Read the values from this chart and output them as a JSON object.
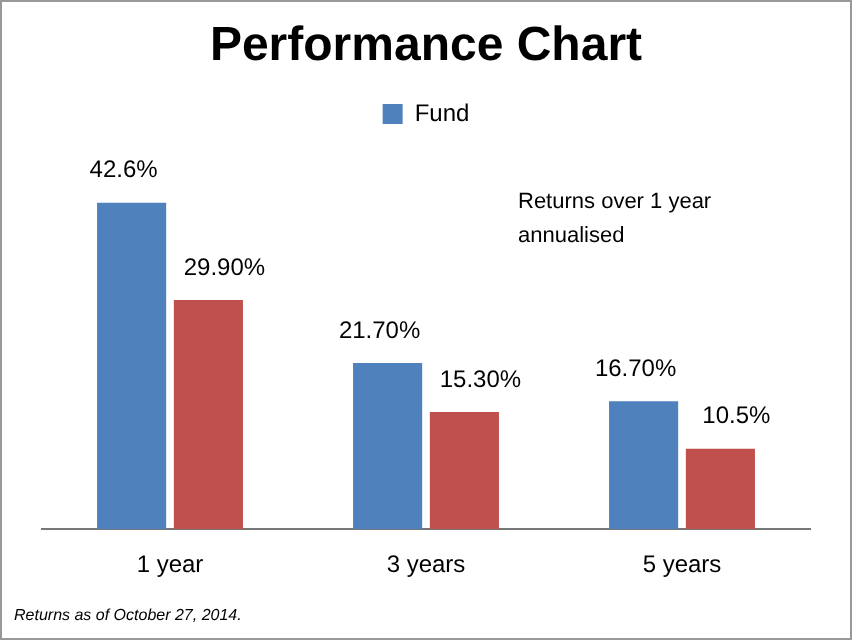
{
  "chart_data": {
    "type": "bar",
    "title": "Performance Chart",
    "categories": [
      "1 year",
      "3 years",
      "5 years"
    ],
    "series": [
      {
        "name": "Fund",
        "color": "#4f81bd",
        "values": [
          42.6,
          21.7,
          16.7
        ],
        "value_labels": [
          "42.6%",
          "21.70%",
          "16.70%"
        ]
      },
      {
        "color": "#c0504d",
        "values": [
          29.9,
          15.3,
          10.5
        ],
        "value_labels": [
          "29.90%",
          "15.30%",
          "10.5%"
        ]
      }
    ],
    "legend": "top",
    "grid": false,
    "annotations": [
      "Returns over 1 year annualised",
      "Returns as of October 27, 2014."
    ]
  }
}
